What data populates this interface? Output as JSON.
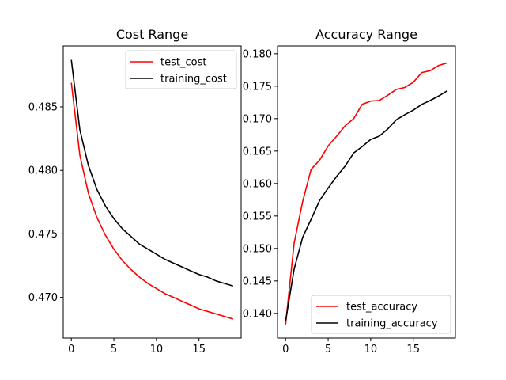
{
  "chart_data": [
    {
      "type": "line",
      "title": "Cost Range",
      "xlabel": "",
      "ylabel": "",
      "xlim": [
        -0.95,
        19.95
      ],
      "ylim": [
        0.4668,
        0.4898
      ],
      "xticks": [
        0,
        5,
        10,
        15
      ],
      "xtick_labels": [
        "0",
        "5",
        "10",
        "15"
      ],
      "yticks": [
        0.47,
        0.475,
        0.48,
        0.485
      ],
      "ytick_labels": [
        "0.470",
        "0.475",
        "0.480",
        "0.485"
      ],
      "grid": false,
      "legend": "top-right",
      "x": [
        0,
        1,
        2,
        3,
        4,
        5,
        6,
        7,
        8,
        9,
        10,
        11,
        12,
        13,
        14,
        15,
        16,
        17,
        18,
        19
      ],
      "series": [
        {
          "name": "test_cost",
          "color": "#ff0000",
          "values": [
            0.4869,
            0.4812,
            0.4782,
            0.4763,
            0.4749,
            0.4738,
            0.4729,
            0.4722,
            0.4716,
            0.4711,
            0.4707,
            0.4703,
            0.47,
            0.4697,
            0.4694,
            0.4691,
            0.4689,
            0.4687,
            0.4685,
            0.4683
          ]
        },
        {
          "name": "training_cost",
          "color": "#000000",
          "values": [
            0.4887,
            0.4832,
            0.4804,
            0.4785,
            0.4772,
            0.4762,
            0.4754,
            0.4748,
            0.4742,
            0.4738,
            0.4734,
            0.473,
            0.4727,
            0.4724,
            0.4721,
            0.4718,
            0.4716,
            0.4713,
            0.4711,
            0.4709
          ]
        }
      ]
    },
    {
      "type": "line",
      "title": "Accuracy Range",
      "xlabel": "",
      "ylabel": "",
      "xlim": [
        -0.95,
        19.95
      ],
      "ylim": [
        0.1362,
        0.1812
      ],
      "xticks": [
        0,
        5,
        10,
        15
      ],
      "xtick_labels": [
        "0",
        "5",
        "10",
        "15"
      ],
      "yticks": [
        0.14,
        0.145,
        0.15,
        0.155,
        0.16,
        0.165,
        0.17,
        0.175,
        0.18
      ],
      "ytick_labels": [
        "0.140",
        "0.145",
        "0.150",
        "0.155",
        "0.160",
        "0.165",
        "0.170",
        "0.175",
        "0.180"
      ],
      "grid": false,
      "legend": "bottom-right",
      "x": [
        0,
        1,
        2,
        3,
        4,
        5,
        6,
        7,
        8,
        9,
        10,
        11,
        12,
        13,
        14,
        15,
        16,
        17,
        18,
        19
      ],
      "series": [
        {
          "name": "test_accuracy",
          "color": "#ff0000",
          "values": [
            0.1383,
            0.1508,
            0.1572,
            0.1622,
            0.1636,
            0.1658,
            0.1673,
            0.1689,
            0.17,
            0.1722,
            0.1727,
            0.1728,
            0.1736,
            0.1745,
            0.1748,
            0.1756,
            0.1771,
            0.1774,
            0.1782,
            0.1786
          ]
        },
        {
          "name": "training_accuracy",
          "color": "#000000",
          "values": [
            0.1388,
            0.1468,
            0.1517,
            0.1545,
            0.1574,
            0.1593,
            0.1611,
            0.1627,
            0.1647,
            0.1657,
            0.1668,
            0.1673,
            0.1684,
            0.1698,
            0.1706,
            0.1713,
            0.1722,
            0.1728,
            0.1735,
            0.1743
          ]
        }
      ]
    }
  ]
}
